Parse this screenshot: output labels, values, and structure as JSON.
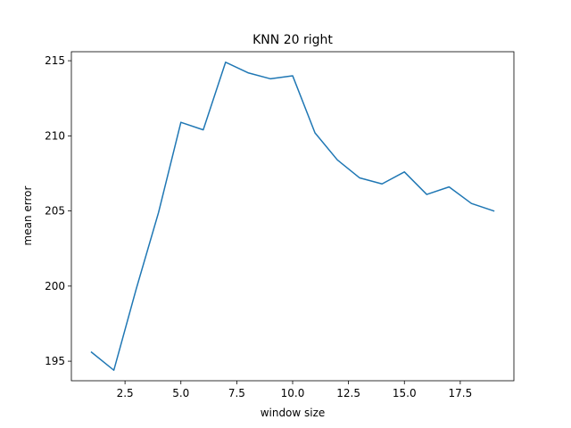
{
  "chart_data": {
    "type": "line",
    "title": "KNN 20 right",
    "xlabel": "window size",
    "ylabel": "mean error",
    "xlim": [
      0.1,
      19.9
    ],
    "ylim": [
      193.7,
      215.6
    ],
    "xticks": [
      2.5,
      5.0,
      7.5,
      10.0,
      12.5,
      15.0,
      17.5
    ],
    "xtick_labels": [
      "2.5",
      "5.0",
      "7.5",
      "10.0",
      "12.5",
      "15.0",
      "17.5"
    ],
    "yticks": [
      195,
      200,
      205,
      210,
      215
    ],
    "ytick_labels": [
      "195",
      "200",
      "205",
      "210",
      "215"
    ],
    "grid": false,
    "line_color": "#1f77b4",
    "series": [
      {
        "x": [
          1,
          2,
          3,
          4,
          5,
          6,
          7,
          8,
          9,
          10,
          11,
          12,
          13,
          14,
          15,
          16,
          17,
          18,
          19
        ],
        "values": [
          195.6,
          194.4,
          199.8,
          204.9,
          210.9,
          210.4,
          214.9,
          214.2,
          213.8,
          214.0,
          210.2,
          208.4,
          207.2,
          206.8,
          207.6,
          206.1,
          206.6,
          205.5,
          205.0
        ]
      }
    ]
  }
}
